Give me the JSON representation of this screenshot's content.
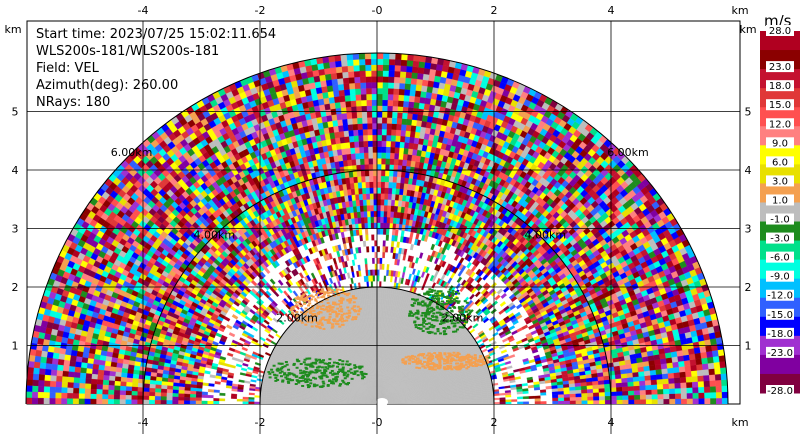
{
  "info": {
    "start_time": "Start time: 2023/07/25 15:02:11.654",
    "source": "WLS200s-181/WLS200s-181",
    "field": "Field: VEL",
    "azimuth": "Azimuth(deg): 260.00",
    "nrays": "NRays: 180"
  },
  "axes": {
    "x_unit": "km",
    "y_unit": "km",
    "x_ticks": [
      "-4",
      "-2",
      "-0",
      "2",
      "4"
    ],
    "x_tick_values": [
      -4,
      -2,
      0,
      2,
      4
    ],
    "y_ticks": [
      "1",
      "2",
      "3",
      "4",
      "5"
    ],
    "y_tick_values": [
      1,
      2,
      3,
      4,
      5
    ]
  },
  "rings": [
    {
      "radius_km": 2,
      "label": "2.00km"
    },
    {
      "radius_km": 4,
      "label": "4.00km"
    },
    {
      "radius_km": 6,
      "label": "6.00km"
    }
  ],
  "colorbar": {
    "unit": "m/s",
    "labels": [
      "28.0",
      "23.0",
      "18.0",
      "15.0",
      "12.0",
      "9.0",
      "6.0",
      "3.0",
      "1.0",
      "-1.0",
      "-3.0",
      "-6.0",
      "-9.0",
      "-12.0",
      "-15.0",
      "-18.0",
      "-23.0",
      "-28.0"
    ],
    "colors": [
      "#b00020",
      "#8b0000",
      "#c41230",
      "#e03838",
      "#ff5050",
      "#ff8080",
      "#ffff00",
      "#e8e000",
      "#f4a050",
      "#bdbdbd",
      "#1e8c1e",
      "#00e08a",
      "#00ffe0",
      "#00c0ff",
      "#3060ff",
      "#0000ff",
      "#a030d0",
      "#8000a0",
      "#800040"
    ]
  },
  "chart_data": {
    "type": "heatmap",
    "projection": "PPI velocity sector, 180 rays, azimuth 260.00 deg",
    "field": "VEL",
    "units": "m/s",
    "xlim": [
      -6,
      6
    ],
    "ylim": [
      0,
      6
    ],
    "max_range_km": 6,
    "regions": [
      {
        "desc": "clutter / near-zero velocity core",
        "r_min_km": 0,
        "r_max_km": 2,
        "value_range": [
          -1,
          1
        ]
      },
      {
        "desc": "approaching band (negative)",
        "x_km": [
          -1.9,
          -0.2
        ],
        "y_km": [
          0.3,
          0.8
        ],
        "value_range": [
          -3,
          -6
        ]
      },
      {
        "desc": "receding band (positive)",
        "x_km": [
          0.4,
          1.9
        ],
        "y_km": [
          0.6,
          0.9
        ],
        "value_range": [
          1,
          3
        ]
      },
      {
        "desc": "receding patch",
        "x_km": [
          -1.5,
          -0.3
        ],
        "y_km": [
          1.3,
          2.0
        ],
        "value_range": [
          1,
          3
        ]
      },
      {
        "desc": "approaching patch",
        "x_km": [
          0.5,
          1.6
        ],
        "y_km": [
          1.2,
          2.0
        ],
        "value_range": [
          -3,
          -6
        ]
      },
      {
        "desc": "noise (random velocities)",
        "r_min_km": 3,
        "r_max_km": 6
      }
    ]
  }
}
